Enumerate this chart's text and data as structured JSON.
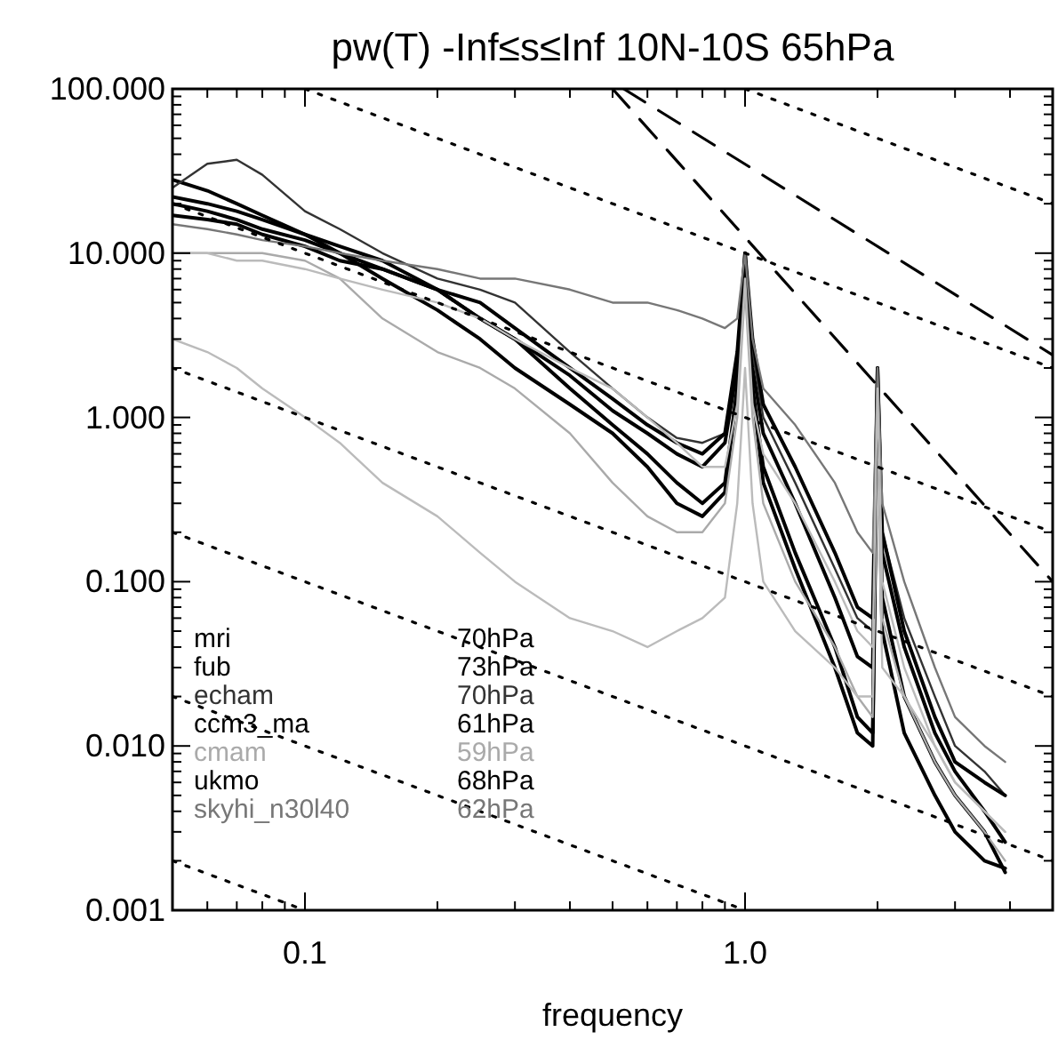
{
  "chart_data": {
    "type": "line",
    "title": "pw(T)  -Inf≤s≤Inf 10N-10S 65hPa",
    "xlabel": "frequency",
    "log": "xy",
    "grid": false,
    "xlim": [
      0.05,
      5
    ],
    "ylim": [
      0.001,
      100
    ],
    "xticks": [
      {
        "value": 0.06,
        "label": null
      },
      {
        "value": 0.07,
        "label": null
      },
      {
        "value": 0.08,
        "label": null
      },
      {
        "value": 0.09,
        "label": null
      },
      {
        "value": 0.1,
        "label": "0.1"
      },
      {
        "value": 0.2,
        "label": null
      },
      {
        "value": 0.3,
        "label": null
      },
      {
        "value": 0.4,
        "label": null
      },
      {
        "value": 0.5,
        "label": null
      },
      {
        "value": 0.6,
        "label": null
      },
      {
        "value": 0.7,
        "label": null
      },
      {
        "value": 0.8,
        "label": null
      },
      {
        "value": 0.9,
        "label": null
      },
      {
        "value": 1,
        "label": "1.0"
      },
      {
        "value": 2,
        "label": null
      },
      {
        "value": 3,
        "label": null
      },
      {
        "value": 4,
        "label": null
      }
    ],
    "yticks": [
      {
        "value": 0.001,
        "label": "0.001"
      },
      {
        "value": 0.002,
        "label": null
      },
      {
        "value": 0.003,
        "label": null
      },
      {
        "value": 0.004,
        "label": null
      },
      {
        "value": 0.005,
        "label": null
      },
      {
        "value": 0.006,
        "label": null
      },
      {
        "value": 0.007,
        "label": null
      },
      {
        "value": 0.008,
        "label": null
      },
      {
        "value": 0.009,
        "label": null
      },
      {
        "value": 0.01,
        "label": "0.010"
      },
      {
        "value": 0.02,
        "label": null
      },
      {
        "value": 0.03,
        "label": null
      },
      {
        "value": 0.04,
        "label": null
      },
      {
        "value": 0.05,
        "label": null
      },
      {
        "value": 0.06,
        "label": null
      },
      {
        "value": 0.07,
        "label": null
      },
      {
        "value": 0.08,
        "label": null
      },
      {
        "value": 0.09,
        "label": null
      },
      {
        "value": 0.1,
        "label": "0.100"
      },
      {
        "value": 0.2,
        "label": null
      },
      {
        "value": 0.3,
        "label": null
      },
      {
        "value": 0.4,
        "label": null
      },
      {
        "value": 0.5,
        "label": null
      },
      {
        "value": 0.6,
        "label": null
      },
      {
        "value": 0.7,
        "label": null
      },
      {
        "value": 0.8,
        "label": null
      },
      {
        "value": 0.9,
        "label": null
      },
      {
        "value": 1,
        "label": "1.000"
      },
      {
        "value": 2,
        "label": null
      },
      {
        "value": 3,
        "label": null
      },
      {
        "value": 4,
        "label": null
      },
      {
        "value": 5,
        "label": null
      },
      {
        "value": 6,
        "label": null
      },
      {
        "value": 7,
        "label": null
      },
      {
        "value": 8,
        "label": null
      },
      {
        "value": 9,
        "label": null
      },
      {
        "value": 10,
        "label": "10.000"
      },
      {
        "value": 20,
        "label": null
      },
      {
        "value": 30,
        "label": null
      },
      {
        "value": 40,
        "label": null
      },
      {
        "value": 50,
        "label": null
      },
      {
        "value": 60,
        "label": null
      },
      {
        "value": 70,
        "label": null
      },
      {
        "value": 80,
        "label": null
      },
      {
        "value": 90,
        "label": null
      },
      {
        "value": 100,
        "label": "100.000"
      }
    ],
    "x": [
      0.05,
      0.06,
      0.07,
      0.08,
      0.1,
      0.12,
      0.15,
      0.2,
      0.25,
      0.3,
      0.4,
      0.5,
      0.6,
      0.7,
      0.8,
      0.9,
      0.96,
      1.0,
      1.04,
      1.1,
      1.3,
      1.6,
      1.8,
      1.95,
      2.0,
      2.05,
      2.3,
      2.7,
      3.0,
      3.5,
      3.9
    ],
    "series": [
      {
        "name": "mri 70hPa",
        "color": "#000000",
        "values": [
          28,
          24,
          20,
          17,
          13,
          10,
          7,
          4.5,
          3,
          2,
          1.2,
          0.8,
          0.5,
          0.3,
          0.25,
          0.35,
          1.5,
          10,
          1.5,
          0.5,
          0.15,
          0.04,
          0.015,
          0.012,
          1.5,
          0.08,
          0.02,
          0.008,
          0.005,
          0.003,
          0.0017
        ]
      },
      {
        "name": "fub 73hPa",
        "color": "#000000",
        "values": [
          20,
          18,
          16,
          14,
          12,
          10,
          8,
          6,
          4,
          3,
          1.8,
          1.1,
          0.8,
          0.6,
          0.5,
          0.7,
          2,
          9,
          2,
          0.8,
          0.3,
          0.08,
          0.035,
          0.03,
          2,
          0.15,
          0.04,
          0.012,
          0.007,
          0.004,
          0.0026
        ]
      },
      {
        "name": "echam 70hPa",
        "color": "#333333",
        "values": [
          25,
          35,
          37,
          30,
          18,
          14,
          10,
          7,
          6,
          5,
          2.5,
          1.5,
          1,
          0.75,
          0.7,
          0.8,
          2.5,
          8,
          2.5,
          1,
          0.4,
          0.12,
          0.06,
          0.05,
          1.8,
          0.2,
          0.06,
          0.02,
          0.01,
          0.007,
          0.005
        ]
      },
      {
        "name": "ccm3_ma 61hPa",
        "color": "#000000",
        "values": [
          17,
          16,
          15,
          13,
          11,
          9,
          8,
          6,
          4,
          3,
          1.5,
          0.9,
          0.6,
          0.4,
          0.3,
          0.4,
          1.5,
          9,
          1.5,
          0.4,
          0.12,
          0.03,
          0.012,
          0.01,
          1.2,
          0.05,
          0.012,
          0.005,
          0.003,
          0.002,
          0.0018
        ]
      },
      {
        "name": "cmam 59hPa",
        "color": "#aaaaaa",
        "values": [
          10,
          10,
          10,
          10,
          9,
          7,
          4,
          2.5,
          2,
          1.5,
          0.8,
          0.4,
          0.25,
          0.2,
          0.2,
          0.3,
          1,
          6,
          1,
          0.3,
          0.1,
          0.04,
          0.02,
          0.015,
          1,
          0.06,
          0.02,
          0.008,
          0.005,
          0.003,
          0.002
        ]
      },
      {
        "color": "#bbbbbb",
        "values": [
          3,
          2.5,
          2,
          1.5,
          1,
          0.7,
          0.4,
          0.25,
          0.15,
          0.1,
          0.06,
          0.05,
          0.04,
          0.05,
          0.06,
          0.08,
          0.3,
          2,
          0.3,
          0.1,
          0.05,
          0.03,
          0.02,
          0.02,
          0.5,
          0.03,
          0.02,
          0.01,
          0.006,
          0.004,
          0.003
        ]
      },
      {
        "name": "ukmo 68hPa",
        "color": "#000000",
        "values": [
          22,
          20,
          18,
          16,
          13,
          11,
          9,
          6,
          5,
          3.5,
          2,
          1.3,
          0.9,
          0.7,
          0.6,
          0.8,
          2.5,
          10,
          3,
          1.2,
          0.5,
          0.15,
          0.07,
          0.06,
          2,
          0.2,
          0.05,
          0.015,
          0.008,
          0.006,
          0.005
        ]
      },
      {
        "name": "skyhi_n30l40 62hPa",
        "color": "#777777",
        "values": [
          15,
          14,
          13,
          12,
          11,
          10,
          9,
          8,
          7,
          7,
          6,
          5,
          5,
          4.5,
          4,
          3.5,
          4,
          10,
          3,
          1.5,
          0.9,
          0.4,
          0.2,
          0.15,
          2,
          0.3,
          0.1,
          0.03,
          0.015,
          0.01,
          0.008
        ]
      },
      {
        "color": "#bbbbbb",
        "values": [
          10,
          10,
          9,
          9,
          8,
          7,
          6,
          5,
          4,
          3,
          2,
          1.5,
          1,
          0.7,
          0.5,
          0.5,
          1.2,
          7,
          1.2,
          0.6,
          0.3,
          0.1,
          0.05,
          0.04,
          1.5,
          0.1,
          0.03,
          0.01,
          0.006,
          0.004,
          0.003
        ]
      },
      {
        "color": "#000000",
        "line_style": "dotted",
        "x": [
          1,
          5
        ],
        "values": [
          100,
          20
        ]
      },
      {
        "color": "#000000",
        "line_style": "dotted",
        "x": [
          0.1,
          5
        ],
        "values": [
          100,
          2
        ]
      },
      {
        "color": "#000000",
        "line_style": "dotted",
        "x": [
          0.05,
          5
        ],
        "values": [
          20,
          0.2
        ]
      },
      {
        "color": "#000000",
        "line_style": "dotted",
        "x": [
          0.05,
          5
        ],
        "values": [
          2,
          0.02
        ]
      },
      {
        "color": "#000000",
        "line_style": "dotted",
        "x": [
          0.05,
          5
        ],
        "values": [
          0.2,
          0.002
        ]
      },
      {
        "color": "#000000",
        "line_style": "dotted",
        "x": [
          0.05,
          1
        ],
        "values": [
          0.02,
          0.001
        ]
      },
      {
        "color": "#000000",
        "line_style": "dotted",
        "x": [
          0.05,
          0.1
        ],
        "values": [
          0.002,
          0.001
        ]
      },
      {
        "color": "#000000",
        "line_style": "dashed",
        "x": [
          0.5,
          5
        ],
        "values": [
          100,
          0.1
        ]
      },
      {
        "color": "#000000",
        "line_style": "dashed",
        "x": [
          0.53,
          5
        ],
        "values": [
          100,
          2.4
        ]
      }
    ]
  }
}
